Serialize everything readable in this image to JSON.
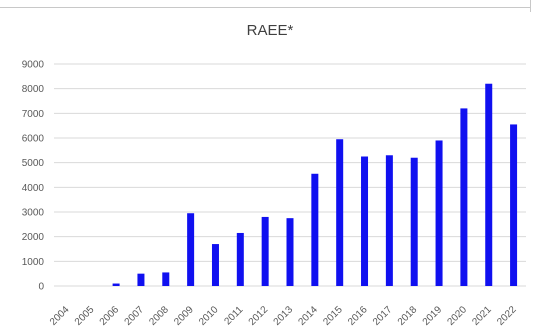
{
  "chart_data": {
    "type": "bar",
    "title": "RAEE*",
    "xlabel": "",
    "ylabel": "",
    "categories": [
      "2004",
      "2005",
      "2006",
      "2007",
      "2008",
      "2009",
      "2010",
      "2011",
      "2012",
      "2013",
      "2014",
      "2015",
      "2016",
      "2017",
      "2018",
      "2019",
      "2020",
      "2021",
      "2022"
    ],
    "series": [
      {
        "values": [
          0,
          0,
          100,
          500,
          550,
          2950,
          1700,
          2150,
          2800,
          2750,
          4550,
          5950,
          5250,
          5300,
          5200,
          5900,
          7200,
          8200,
          6550
        ]
      }
    ],
    "ylim": [
      0,
      9000
    ],
    "yticks": [
      0,
      1000,
      2000,
      3000,
      4000,
      5000,
      6000,
      7000,
      8000,
      9000
    ],
    "grid": true,
    "legend": "none",
    "bar_color": "#1010f0",
    "grid_color": "#d9d9d9"
  }
}
